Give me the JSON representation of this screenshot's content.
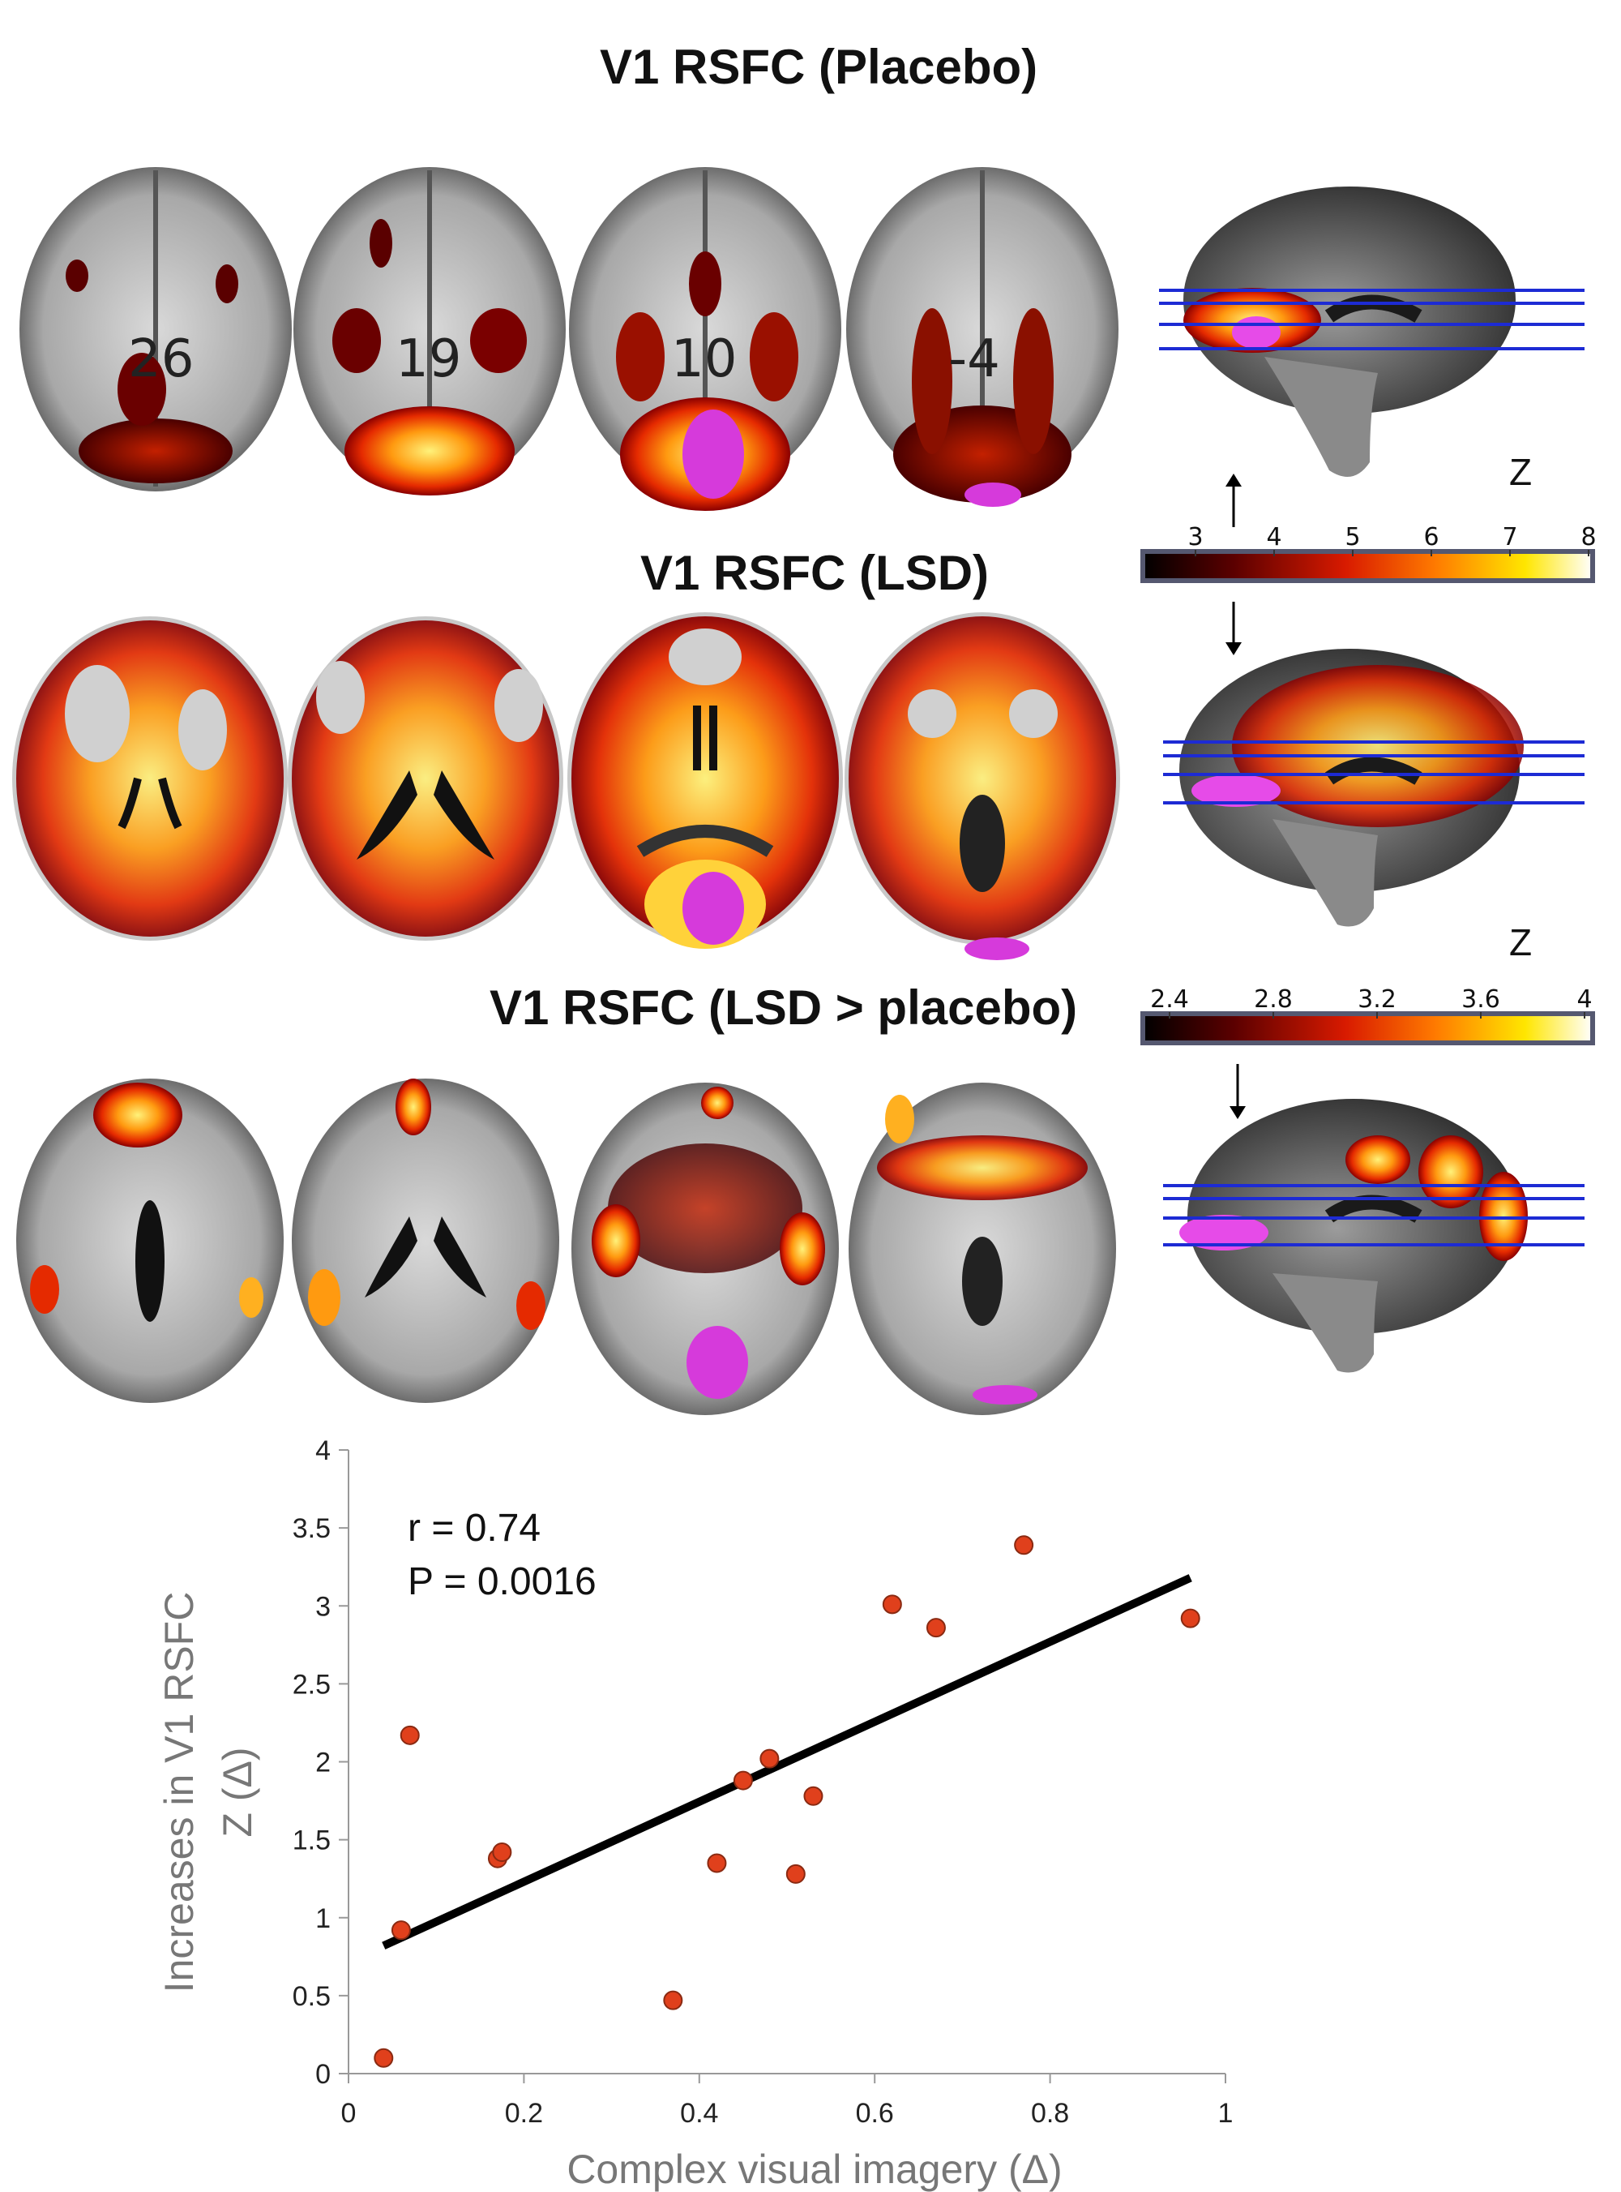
{
  "panels": {
    "placebo_title": "V1 RSFC (Placebo)",
    "lsd_title": "V1 RSFC (LSD)",
    "contrast_title": "V1 RSFC (LSD > placebo)",
    "slice_numbers": [
      "26",
      "19",
      "10",
      "-4"
    ]
  },
  "colorbars": [
    {
      "label": "Z",
      "ticks": [
        "3",
        "4",
        "5",
        "6",
        "7",
        "8"
      ]
    },
    {
      "label": "Z",
      "ticks": [
        "2.4",
        "2.8",
        "3.2",
        "3.6",
        "4"
      ]
    }
  ],
  "scatter": {
    "stats": {
      "r": "r = 0.74",
      "p": "P = 0.0016"
    },
    "ylabel_line1": "Increases in V1 RSFC",
    "ylabel_line2": "Z (Δ)",
    "xlabel": "Complex visual imagery (Δ)",
    "colors": {
      "point_fill": "#e0401c",
      "point_stroke": "#8a2a12",
      "line": "#000000"
    }
  },
  "chart_data": {
    "type": "scatter",
    "x": [
      0.04,
      0.06,
      0.07,
      0.17,
      0.175,
      0.37,
      0.42,
      0.45,
      0.48,
      0.51,
      0.53,
      0.62,
      0.67,
      0.77,
      0.96
    ],
    "y": [
      0.1,
      0.92,
      2.17,
      1.38,
      1.42,
      0.47,
      1.35,
      1.88,
      2.02,
      1.28,
      1.78,
      3.01,
      2.86,
      3.39,
      2.92
    ],
    "fit_line": {
      "x": [
        0.04,
        0.96
      ],
      "y": [
        0.82,
        3.18
      ]
    },
    "xlim": [
      0,
      1
    ],
    "ylim": [
      0,
      4
    ],
    "xticks": [
      "0",
      "0.2",
      "0.4",
      "0.6",
      "0.8",
      "1"
    ],
    "yticks": [
      "0",
      "0.5",
      "1",
      "1.5",
      "2",
      "2.5",
      "3",
      "3.5",
      "4"
    ],
    "xlabel": "Complex visual imagery (Δ)",
    "ylabel": "Increases in V1 RSFC Z (Δ)",
    "annotations": [
      "r = 0.74",
      "P = 0.0016"
    ]
  }
}
